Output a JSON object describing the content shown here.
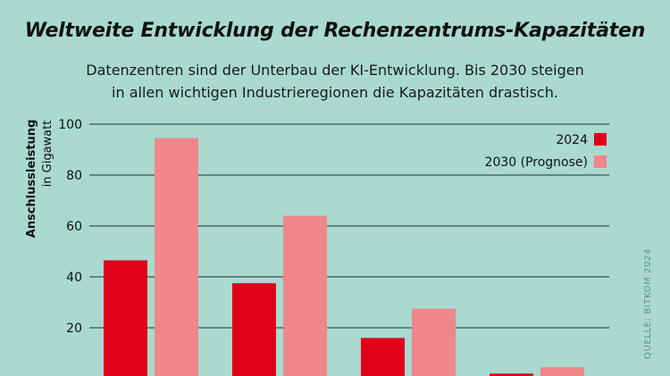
{
  "header": {
    "title": "Weltweite Entwicklung der Rechenzentrums-Kapazitäten",
    "subtitle_line1": "Datenzentren sind der Unterbau der KI-Entwicklung. Bis 2030 steigen",
    "subtitle_line2": "in allen wichtigen Industrieregionen die Kapazitäten drastisch."
  },
  "source": "QUELLE: BITKOM 2024",
  "colors": {
    "series_2024": "#e1001a",
    "series_2030": "#ef868a",
    "background": "#a9d9cf",
    "grid": "#2a2a2a"
  },
  "chart_data": {
    "type": "bar",
    "title": "Weltweite Entwicklung der Rechenzentrums-Kapazitäten",
    "ylabel": "Anschlussleistung",
    "ylabel_unit": "in Gigawatt",
    "ylim": [
      0,
      100
    ],
    "yticks": [
      "100",
      "80",
      "60",
      "40",
      "20"
    ],
    "grid": true,
    "legend_position": "top-right",
    "categories": [
      "",
      "",
      "",
      ""
    ],
    "series": [
      {
        "name": "2024",
        "values": [
          46.5,
          37.5,
          16,
          2
        ]
      },
      {
        "name": "2030 (Prognose)",
        "values": [
          94.5,
          64,
          27.5,
          4.5
        ]
      }
    ]
  }
}
